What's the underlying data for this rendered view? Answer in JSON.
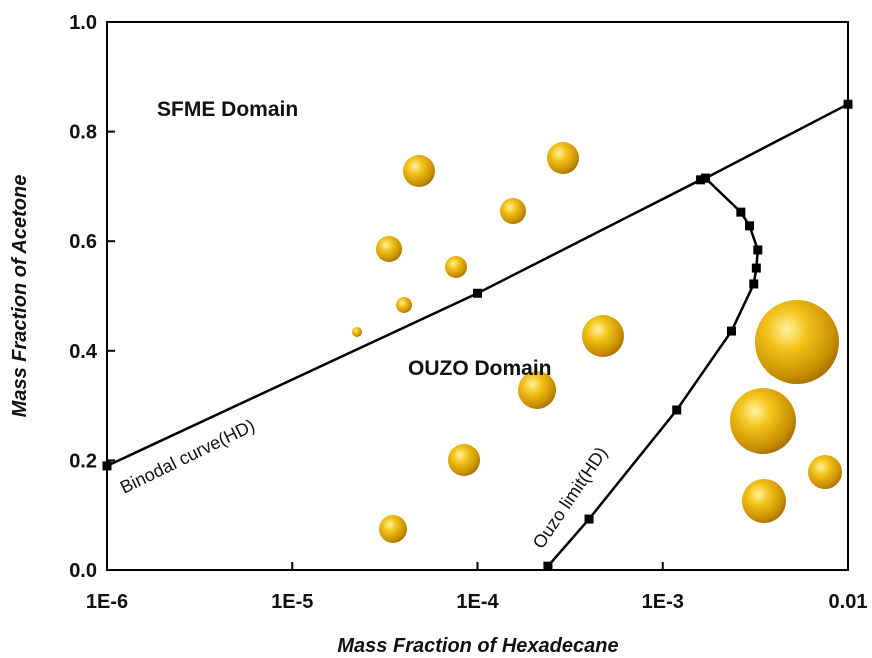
{
  "chart_data": {
    "type": "line",
    "xlabel": "Mass Fraction of Hexadecane",
    "ylabel": "Mass Fraction of Acetone",
    "xscale": "log",
    "xlim": [
      1e-06,
      0.01
    ],
    "xticks": [
      {
        "value": 1e-06,
        "label": "1E-6"
      },
      {
        "value": 1e-05,
        "label": "1E-5"
      },
      {
        "value": 0.0001,
        "label": "1E-4"
      },
      {
        "value": 0.001,
        "label": "1E-3"
      },
      0.01
    ],
    "ylim": [
      0,
      1
    ],
    "yticks": [
      {
        "value": 0,
        "label": "0.0"
      },
      0.2,
      0.4,
      0.6,
      0.8,
      {
        "value": 1,
        "label": "1.0"
      }
    ],
    "annotations": [
      "SFME Domain",
      "OUZO Domain",
      "Binodal curve(HD)",
      "Ouzo limit(HD)"
    ],
    "series": [
      {
        "name": "Binodal curve(HD)",
        "color": "#000000",
        "x": [
          1e-06,
          0.0001,
          0.0016,
          0.0017,
          0.01
        ],
        "values": [
          0.19,
          0.505,
          0.712,
          0.715,
          0.85
        ]
      },
      {
        "name": "Ouzo limit(HD)",
        "color": "#000000",
        "x": [
          0.0017,
          0.00264,
          0.00294,
          0.00326,
          0.0032,
          0.0031,
          0.00235,
          0.00119,
          0.0004,
          0.00024
        ],
        "values": [
          0.715,
          0.653,
          0.628,
          0.584,
          0.551,
          0.522,
          0.436,
          0.292,
          0.093,
          0.007
        ]
      }
    ]
  }
}
